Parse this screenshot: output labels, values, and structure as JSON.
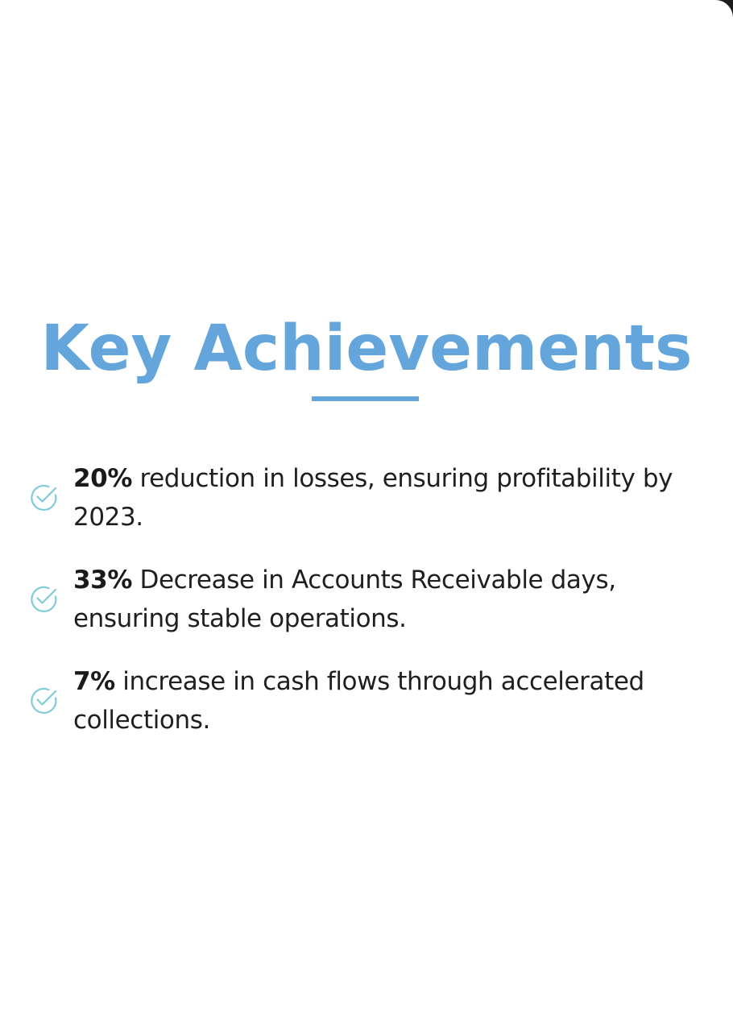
{
  "section": {
    "title": "Key Achievements",
    "accent_color": "#64a6dc",
    "check_color": "#7fcbd8"
  },
  "achievements": [
    {
      "icon": "check-circle-icon",
      "highlight": "20%",
      "text": " reduction in losses, ensuring profitability by 2023."
    },
    {
      "icon": "check-circle-icon",
      "highlight": "33%",
      "text": " Decrease in Accounts Receivable days, ensuring stable operations."
    },
    {
      "icon": "check-circle-icon",
      "highlight": "7%",
      "text": " increase in cash flows through accelerated collections."
    }
  ]
}
